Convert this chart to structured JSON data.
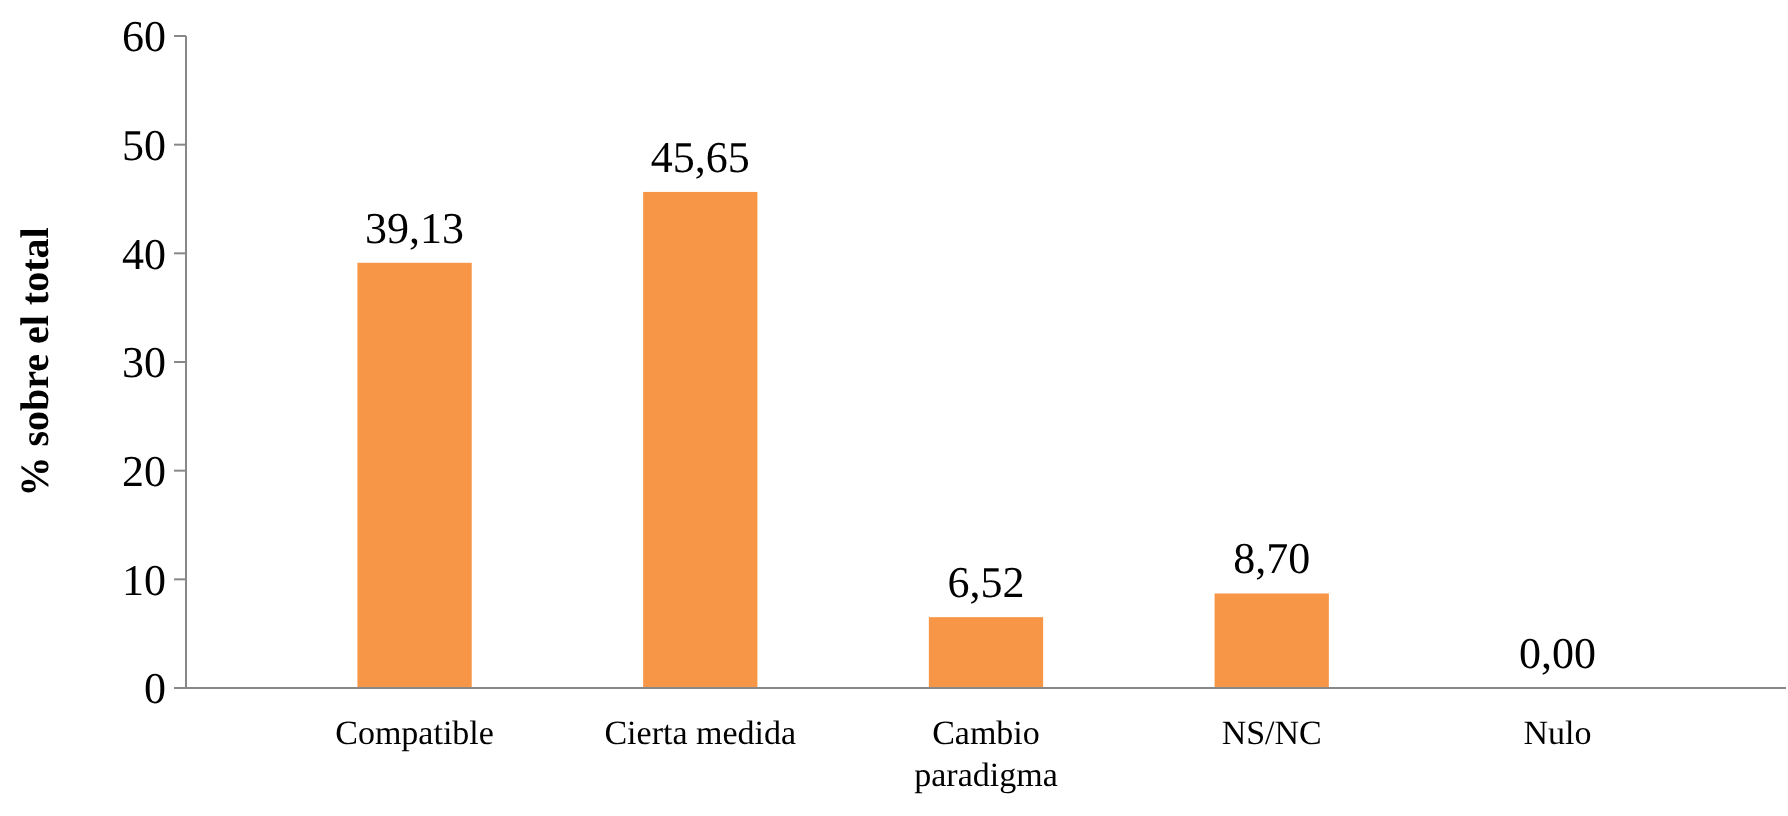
{
  "chart_data": {
    "type": "bar",
    "ylabel": "% sobre el total",
    "categories": [
      "Compatible",
      "Cierta medida",
      "Cambio paradigma",
      "NS/NC",
      "Nulo"
    ],
    "values": [
      39.13,
      45.65,
      6.52,
      8.7,
      0.0
    ],
    "value_labels": [
      "39,13",
      "45,65",
      "6,52",
      "8,70",
      "0,00"
    ],
    "color": "#f79646",
    "ylim": [
      0,
      60
    ],
    "yticks": [
      0,
      10,
      20,
      30,
      40,
      50,
      60
    ],
    "grid": false
  }
}
